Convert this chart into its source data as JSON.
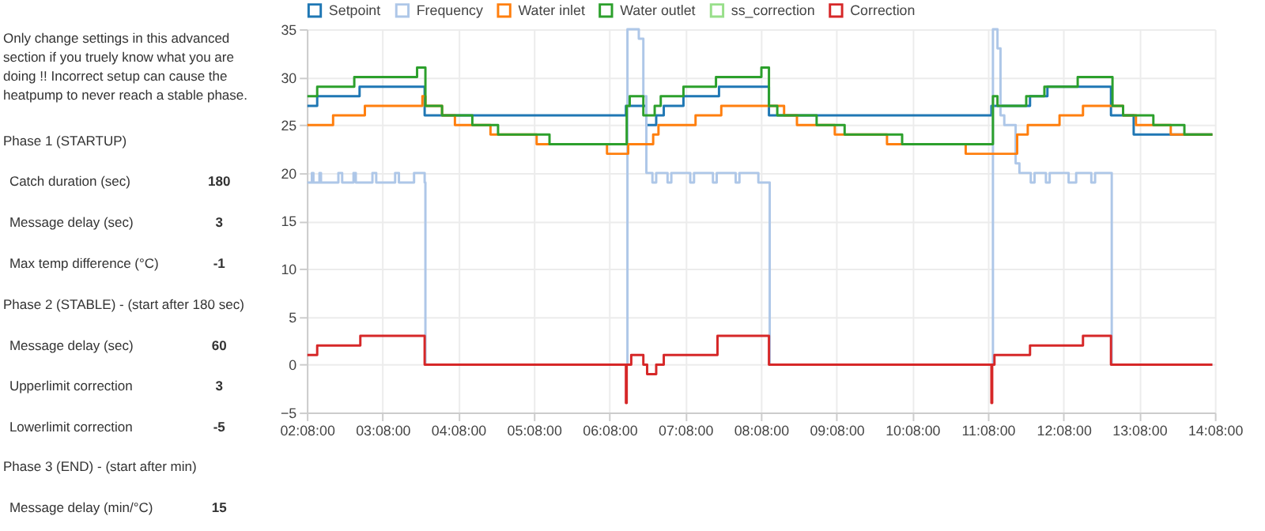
{
  "chart_data": [
    {
      "type": "other",
      "annotations": [
        "Only change settings in this advanced",
        "section if you truely know what you are",
        "doing !! Incorrect setup can cause the",
        "heatpump to never reach a stable phase.",
        "Phase 1 (STARTUP)",
        "Catch duration (sec)",
        "180",
        "Message delay (sec)",
        "3",
        "Max temp difference (°C)",
        "-1",
        "Phase 2 (STABLE) - (start after 180 sec)",
        "Message delay (sec)",
        "60",
        "Upperlimit correction",
        "3",
        "Lowerlimit correction",
        "-5",
        "Phase 3 (END) - (start after min)",
        "Message delay (min/°C)",
        "15"
      ]
    },
    {
      "type": "line",
      "legend": "top",
      "grid": true,
      "xlim": [
        2.1333,
        14.1333
      ],
      "ylim": [
        -5,
        35
      ],
      "yticks": [
        -5,
        0,
        5,
        10,
        15,
        20,
        25,
        30,
        35
      ],
      "xticks": [
        {
          "value": 2.1333,
          "label": "02:08:00"
        },
        {
          "value": 3.1333,
          "label": "03:08:00"
        },
        {
          "value": 4.1333,
          "label": "04:08:00"
        },
        {
          "value": 5.1333,
          "label": "05:08:00"
        },
        {
          "value": 6.1333,
          "label": "06:08:00"
        },
        {
          "value": 7.1333,
          "label": "07:08:00"
        },
        {
          "value": 8.1333,
          "label": "08:08:00"
        },
        {
          "value": 9.1333,
          "label": "09:08:00"
        },
        {
          "value": 10.1333,
          "label": "10:08:00"
        },
        {
          "value": 11.1333,
          "label": "11:08:00"
        },
        {
          "value": 12.1333,
          "label": "12:08:00"
        },
        {
          "value": 13.1333,
          "label": "13:08:00"
        },
        {
          "value": 14.1333,
          "label": "14:08:00"
        }
      ],
      "series": [
        {
          "name": "Setpoint",
          "color": "#1f77b4",
          "type": "step",
          "x": [
            2.14,
            2.27,
            2.83,
            3.69,
            6.35,
            6.62,
            6.75,
            6.85,
            7.11,
            7.58,
            8.24,
            11.18,
            11.69,
            11.92,
            12.76,
            13.06,
            14.1
          ],
          "values": [
            27,
            28,
            29,
            26,
            27,
            25,
            26,
            27,
            28,
            29,
            26,
            27,
            28,
            29,
            26,
            24,
            24
          ]
        },
        {
          "name": "Frequency",
          "color": "#aec7e8",
          "type": "step",
          "x": [
            2.14,
            2.2,
            2.22,
            2.3,
            2.32,
            2.55,
            2.6,
            2.75,
            2.78,
            3.0,
            3.05,
            3.3,
            3.35,
            3.55,
            3.69,
            3.7,
            6.35,
            6.37,
            6.52,
            6.58,
            6.62,
            6.7,
            6.75,
            6.9,
            6.95,
            7.2,
            7.25,
            7.5,
            7.55,
            7.8,
            7.85,
            8.1,
            8.24,
            8.25,
            11.18,
            11.2,
            11.26,
            11.3,
            11.35,
            11.45,
            11.5,
            11.55,
            11.7,
            11.75,
            11.9,
            11.95,
            12.2,
            12.3,
            12.5,
            12.55,
            12.76,
            12.77,
            14.1
          ],
          "values": [
            19,
            20,
            19,
            20,
            19,
            20,
            19,
            20,
            19,
            20,
            19,
            20,
            19,
            20,
            19,
            0,
            0,
            35,
            34,
            28,
            20,
            19,
            20,
            19,
            20,
            19,
            20,
            19,
            20,
            19,
            20,
            19,
            19,
            0,
            0,
            35,
            33,
            26,
            25,
            25,
            21,
            20,
            19,
            20,
            19,
            20,
            19,
            20,
            19,
            20,
            20,
            0,
            0
          ]
        },
        {
          "name": "Water inlet",
          "color": "#ff7f0e",
          "type": "step",
          "x": [
            2.14,
            2.48,
            2.9,
            3.66,
            3.7,
            3.92,
            4.09,
            4.56,
            5.17,
            6.1,
            6.38,
            6.71,
            6.78,
            7.27,
            7.61,
            8.44,
            8.61,
            9.11,
            9.8,
            10.84,
            11.52,
            11.66,
            12.08,
            12.39,
            12.92,
            13.09,
            13.55,
            14.1
          ],
          "values": [
            25,
            26,
            27,
            28,
            27,
            26,
            25,
            24,
            23,
            22,
            23,
            24,
            25,
            26,
            27,
            26,
            25,
            24,
            23,
            22,
            24,
            25,
            26,
            27,
            26,
            25,
            24,
            24
          ]
        },
        {
          "name": "Water outlet",
          "color": "#2ca02c",
          "type": "step",
          "x": [
            2.14,
            2.27,
            2.76,
            3.59,
            3.7,
            3.92,
            4.32,
            4.66,
            5.34,
            6.36,
            6.4,
            6.58,
            6.73,
            6.81,
            7.11,
            7.54,
            8.14,
            8.24,
            8.35,
            8.87,
            9.24,
            10.0,
            11.2,
            11.26,
            11.64,
            11.88,
            12.32,
            12.78,
            12.92,
            13.32,
            13.73,
            14.1
          ],
          "values": [
            28,
            29,
            30,
            31,
            27,
            26,
            25,
            24,
            23,
            27,
            28,
            26,
            27,
            28,
            29,
            30,
            31,
            27,
            26,
            25,
            24,
            23,
            28,
            27,
            28,
            29,
            30,
            27,
            26,
            25,
            24,
            24
          ]
        },
        {
          "name": "ss_correction",
          "color": "#98df8a",
          "type": "step",
          "values": [
            null
          ]
        },
        {
          "name": "Correction",
          "color": "#d62728",
          "type": "step",
          "x": [
            2.14,
            2.27,
            2.84,
            3.69,
            6.35,
            6.36,
            6.42,
            6.58,
            6.63,
            6.75,
            6.85,
            7.56,
            8.24,
            11.18,
            11.19,
            11.22,
            11.69,
            12.39,
            12.76,
            14.1
          ],
          "values": [
            1,
            2,
            3,
            0,
            -4,
            0,
            1,
            0,
            -1,
            0,
            1,
            3,
            0,
            -4,
            0,
            1,
            2,
            3,
            0,
            0
          ]
        }
      ]
    }
  ]
}
